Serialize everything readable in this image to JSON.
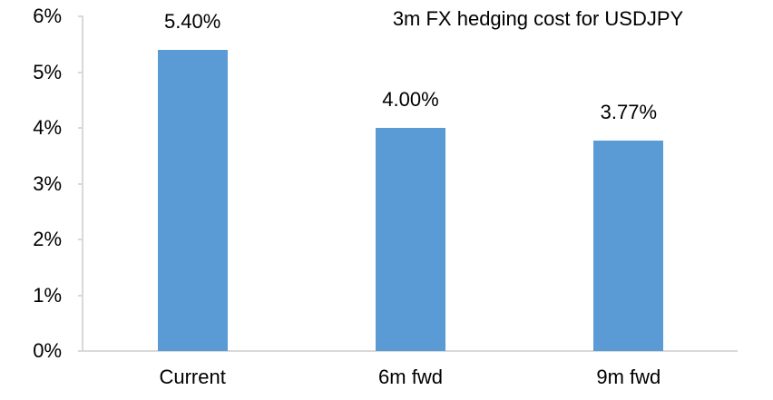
{
  "chart_data": {
    "type": "bar",
    "title": "3m FX hedging cost for USDJPY",
    "categories": [
      "Current",
      "6m fwd",
      "9m fwd"
    ],
    "values": [
      5.4,
      4.0,
      3.77
    ],
    "data_labels": [
      "5.40%",
      "4.00%",
      "3.77%"
    ],
    "xlabel": "",
    "ylabel": "",
    "ylim": [
      0,
      6
    ],
    "ytick_step": 1,
    "ytick_labels": [
      "0%",
      "1%",
      "2%",
      "3%",
      "4%",
      "5%",
      "6%"
    ],
    "grid": false,
    "legend": "none",
    "bar_color": "#5B9BD5",
    "axis_color": "#D9D9D9",
    "text_color": "#000000",
    "background_color": "#FFFFFF"
  }
}
